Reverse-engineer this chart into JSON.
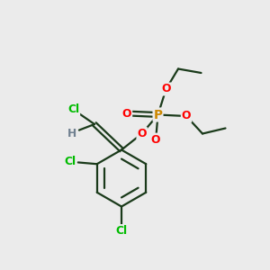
{
  "background_color": "#ebebeb",
  "atom_colors": {
    "C": "#000000",
    "H": "#708090",
    "Cl": "#00bb00",
    "O": "#ff0000",
    "P": "#cc8800"
  },
  "figsize": [
    3.0,
    3.0
  ],
  "dpi": 100
}
